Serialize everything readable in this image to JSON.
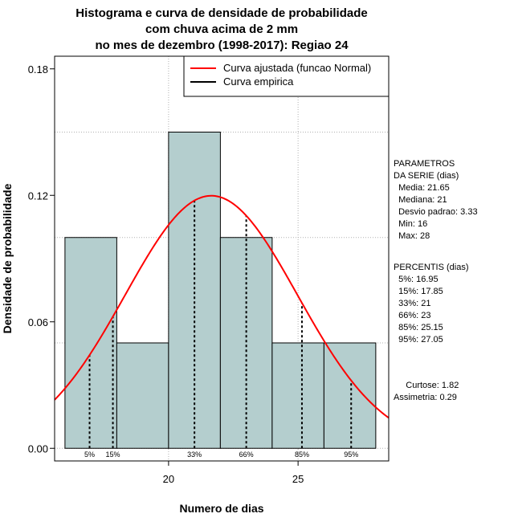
{
  "chart_data": {
    "type": "histogram",
    "title_lines": [
      "Histograma e curva de densidade de probabilidade",
      "com chuva acima de 2 mm",
      "no mes de dezembro (1998-2017): Regiao 24"
    ],
    "xlabel": "Numero de dias",
    "ylabel": "Densidade de probabilidade",
    "xlim": [
      15.6,
      28.5
    ],
    "ylim": [
      -0.006,
      0.186
    ],
    "x_ticks": [
      20,
      25
    ],
    "y_ticks": [
      0.0,
      0.06,
      0.12,
      0.18
    ],
    "y_tick_labels": [
      "0.00",
      "0.06",
      "0.12",
      "0.18"
    ],
    "grid": true,
    "bins": [
      {
        "start": 16,
        "end": 18,
        "density": 0.1
      },
      {
        "start": 18,
        "end": 20,
        "density": 0.05
      },
      {
        "start": 20,
        "end": 22,
        "density": 0.15
      },
      {
        "start": 22,
        "end": 24,
        "density": 0.1
      },
      {
        "start": 24,
        "end": 26,
        "density": 0.05
      },
      {
        "start": 26,
        "end": 28,
        "density": 0.05
      }
    ],
    "bar_color": "#b4cece",
    "normal_fit": {
      "mean": 21.65,
      "sd": 3.33,
      "color": "#ff0000"
    },
    "percentile_markers": [
      {
        "label": "5%",
        "x": 16.95
      },
      {
        "label": "15%",
        "x": 17.85
      },
      {
        "label": "33%",
        "x": 21
      },
      {
        "label": "66%",
        "x": 23
      },
      {
        "label": "85%",
        "x": 25.15
      },
      {
        "label": "95%",
        "x": 27.05
      }
    ],
    "legend": {
      "position": "top-right",
      "entries": [
        {
          "label": "Curva ajustada (funcao Normal)",
          "color": "#ff0000"
        },
        {
          "label": "Curva empirica",
          "color": "#000000"
        }
      ]
    }
  },
  "side_panel": {
    "params_lines": [
      "PARAMETROS",
      "DA SERIE (dias)",
      "  Media: 21.65",
      "  Mediana: 21",
      "  Desvio padrao: 3.33",
      "  Min: 16",
      "  Max: 28"
    ],
    "percentis_lines": [
      "PERCENTIS (dias)",
      "  5%: 16.95",
      "  15%: 17.85",
      "  33%: 21",
      "  66%: 23",
      "  85%: 25.15",
      "  95%: 27.05"
    ],
    "extra_lines": [
      "     Curtose: 1.82",
      "Assimetria: 0.29"
    ]
  }
}
